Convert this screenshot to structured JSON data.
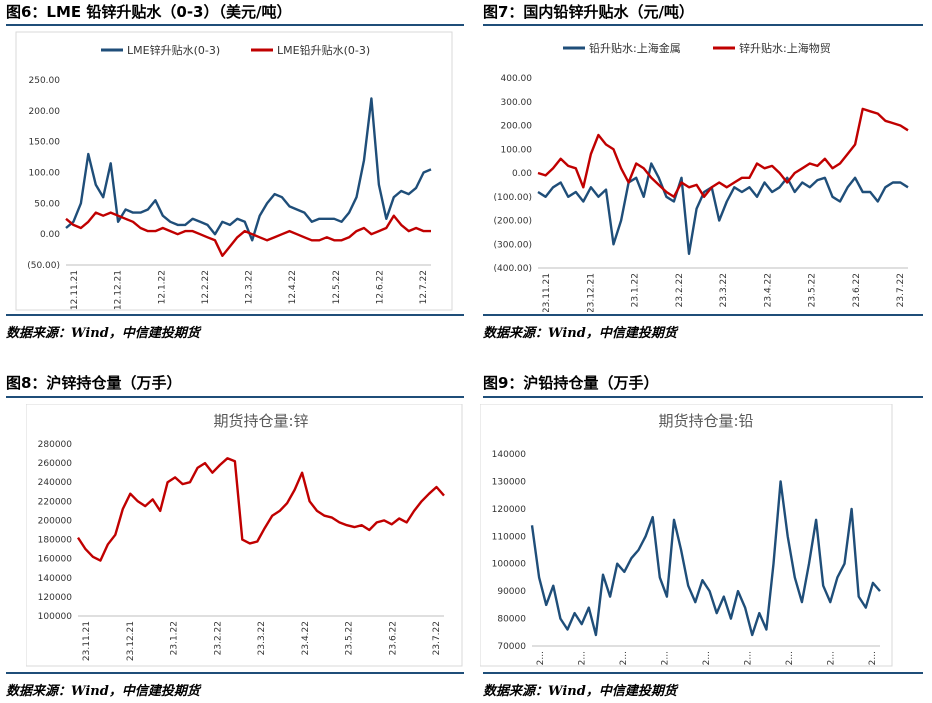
{
  "captions": {
    "c6": "图6：LME 铅锌升贴水（0-3）（美元/吨）",
    "c7": "图7：国内铅锌升贴水（元/吨）",
    "c8": "图8：沪锌持仓量（万手）",
    "c9": "图9：沪铅持仓量（万手）"
  },
  "sources": {
    "s6": "数据来源：Wind，中信建投期货",
    "s7": "数据来源：Wind，中信建投期货",
    "s8": "数据来源：Wind，中信建投期货",
    "s9": "数据来源：Wind，中信建投期货"
  },
  "chart_data": [
    {
      "type": "line",
      "ylim": [
        -50,
        250
      ],
      "y_ticks": [
        "(50.00)",
        "0.00",
        "50.00",
        "100.00",
        "150.00",
        "200.00",
        "250.00"
      ],
      "x_ticks": [
        "12.11.21",
        "12.12.21",
        "12.1.22",
        "12.2.22",
        "12.3.22",
        "12.4.22",
        "12.5.22",
        "12.6.22",
        "12.7.22"
      ],
      "grid": false,
      "legend": "top",
      "series": [
        {
          "name": "LME锌升贴水(0-3)",
          "color": "#1f4e79",
          "values": [
            10,
            20,
            50,
            130,
            80,
            60,
            115,
            20,
            40,
            35,
            35,
            40,
            55,
            30,
            20,
            15,
            15,
            25,
            20,
            15,
            0,
            20,
            15,
            25,
            20,
            -10,
            30,
            50,
            65,
            60,
            45,
            40,
            35,
            20,
            25,
            25,
            25,
            20,
            35,
            60,
            120,
            220,
            80,
            25,
            60,
            70,
            65,
            75,
            100,
            105
          ]
        },
        {
          "name": "LME铅升贴水(0-3)",
          "color": "#c00000",
          "values": [
            25,
            15,
            10,
            20,
            35,
            30,
            35,
            30,
            25,
            20,
            10,
            5,
            5,
            10,
            5,
            0,
            5,
            5,
            0,
            -5,
            -10,
            -35,
            -20,
            -5,
            5,
            0,
            -5,
            -10,
            -5,
            0,
            5,
            0,
            -5,
            -10,
            -10,
            -5,
            -10,
            -10,
            -5,
            5,
            10,
            0,
            5,
            10,
            30,
            15,
            5,
            10,
            5,
            5
          ]
        }
      ]
    },
    {
      "type": "line",
      "ylim": [
        -400,
        400
      ],
      "y_ticks": [
        "(400.00)",
        "(300.00)",
        "(200.00)",
        "(100.00)",
        "0.00",
        "100.00",
        "200.00",
        "300.00",
        "400.00"
      ],
      "x_ticks": [
        "23.11.21",
        "23.12.21",
        "23.1.22",
        "23.2.22",
        "23.3.22",
        "23.4.22",
        "23.5.22",
        "23.6.22",
        "23.7.22"
      ],
      "grid": false,
      "legend": "top",
      "series": [
        {
          "name": "铅升贴水:上海金属",
          "color": "#1f4e79",
          "values": [
            -80,
            -100,
            -60,
            -40,
            -100,
            -80,
            -120,
            -60,
            -100,
            -70,
            -300,
            -200,
            -40,
            -20,
            -100,
            40,
            -20,
            -100,
            -120,
            -20,
            -340,
            -150,
            -80,
            -60,
            -200,
            -120,
            -60,
            -80,
            -60,
            -100,
            -40,
            -80,
            -60,
            -20,
            -80,
            -40,
            -60,
            -30,
            -20,
            -100,
            -120,
            -60,
            -20,
            -80,
            -80,
            -120,
            -60,
            -40,
            -40,
            -60
          ]
        },
        {
          "name": "锌升贴水:上海物贸",
          "color": "#c00000",
          "values": [
            0,
            -10,
            20,
            60,
            30,
            20,
            -60,
            80,
            160,
            120,
            100,
            20,
            -40,
            40,
            20,
            -20,
            -50,
            -80,
            -100,
            -40,
            -60,
            -50,
            -100,
            -60,
            -40,
            -60,
            -40,
            -20,
            -20,
            40,
            20,
            30,
            0,
            -40,
            0,
            20,
            40,
            30,
            60,
            20,
            40,
            80,
            120,
            270,
            260,
            250,
            220,
            210,
            200,
            180
          ]
        }
      ]
    },
    {
      "type": "line",
      "title": "期货持仓量:锌",
      "ylim": [
        100000,
        280000
      ],
      "y_ticks": [
        "100000",
        "120000",
        "140000",
        "160000",
        "180000",
        "200000",
        "220000",
        "240000",
        "260000",
        "280000"
      ],
      "x_ticks": [
        "23.11.21",
        "23.12.21",
        "23.1.22",
        "23.2.22",
        "23.3.22",
        "23.4.22",
        "23.5.22",
        "23.6.22",
        "23.7.22"
      ],
      "grid": false,
      "series": [
        {
          "color": "#c00000",
          "values": [
            182000,
            170000,
            162000,
            158000,
            175000,
            185000,
            212000,
            228000,
            220000,
            215000,
            222000,
            210000,
            240000,
            245000,
            238000,
            240000,
            255000,
            260000,
            250000,
            258000,
            265000,
            262000,
            180000,
            176000,
            178000,
            192000,
            205000,
            210000,
            218000,
            232000,
            250000,
            220000,
            210000,
            205000,
            203000,
            198000,
            195000,
            193000,
            195000,
            190000,
            198000,
            200000,
            196000,
            202000,
            198000,
            210000,
            220000,
            228000,
            235000,
            226000
          ]
        }
      ]
    },
    {
      "type": "line",
      "title": "期货持仓量:铅",
      "ylim": [
        70000,
        140000
      ],
      "y_ticks": [
        "70000",
        "80000",
        "90000",
        "100000",
        "110000",
        "120000",
        "130000",
        "140000"
      ],
      "x_ticks": [
        "2...",
        "2...",
        "2...",
        "2...",
        "2...",
        "2...",
        "2...",
        "2...",
        "2..."
      ],
      "grid": false,
      "series": [
        {
          "color": "#1f4e79",
          "values": [
            114000,
            95000,
            85000,
            92000,
            80000,
            76000,
            82000,
            78000,
            84000,
            74000,
            96000,
            88000,
            100000,
            97000,
            102000,
            105000,
            110000,
            117000,
            95000,
            88000,
            116000,
            105000,
            92000,
            86000,
            94000,
            90000,
            82000,
            88000,
            80000,
            90000,
            84000,
            74000,
            82000,
            76000,
            100000,
            130000,
            110000,
            95000,
            86000,
            100000,
            116000,
            92000,
            86000,
            95000,
            100000,
            120000,
            88000,
            84000,
            93000,
            90000
          ]
        }
      ]
    }
  ]
}
